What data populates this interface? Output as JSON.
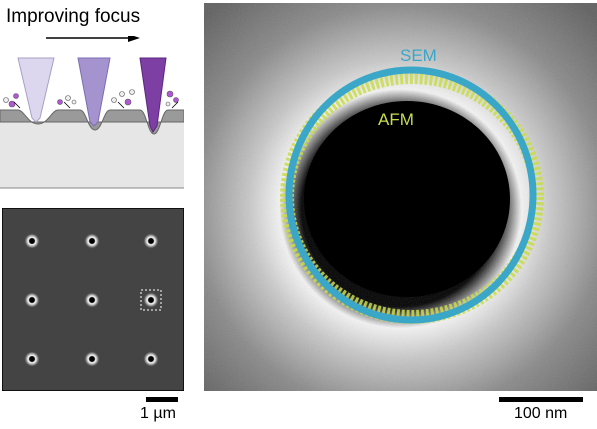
{
  "panel_a": {
    "title": "Improving focus"
  },
  "panel_c": {
    "label_sem": "SEM",
    "label_afm": "AFM",
    "color_sem": "#3aa7c9",
    "color_afm": "#c9dc4b"
  },
  "scalebars": {
    "small": "1 µm",
    "large": "100 nm"
  },
  "colors": {
    "tip_light": "#dcd6ee",
    "tip_mid": "#a593cf",
    "tip_dark": "#7d3fa3",
    "particle_purple": "#b157d6",
    "substrate": "#9a9a9a",
    "bulk": "#e6e6e6"
  }
}
